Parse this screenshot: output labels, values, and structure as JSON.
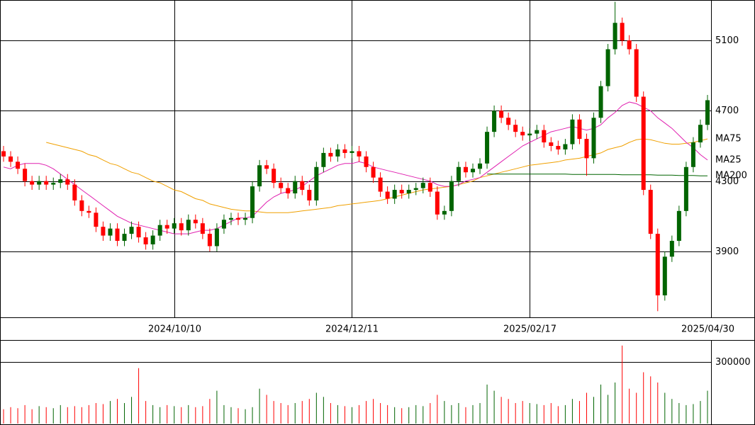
{
  "chart_data": {
    "type": "candlestick",
    "categories": [
      null,
      null,
      null,
      null,
      null,
      null,
      null,
      null,
      null,
      null,
      null,
      null,
      null,
      null,
      null,
      null,
      null,
      null,
      null,
      null,
      null,
      null,
      null,
      null,
      "2024/10/10",
      null,
      null,
      null,
      null,
      null,
      null,
      null,
      null,
      null,
      null,
      null,
      null,
      null,
      null,
      null,
      null,
      null,
      null,
      null,
      null,
      null,
      null,
      null,
      null,
      "2024/12/11",
      null,
      null,
      null,
      null,
      null,
      null,
      null,
      null,
      null,
      null,
      null,
      null,
      null,
      null,
      null,
      null,
      null,
      null,
      null,
      null,
      null,
      null,
      null,
      null,
      "2025/02/17",
      null,
      null,
      null,
      null,
      null,
      null,
      null,
      null,
      null,
      null,
      null,
      null,
      null,
      null,
      null,
      null,
      null,
      null,
      null,
      null,
      null,
      null,
      null,
      null,
      "2025/04/30"
    ],
    "open": [
      4470,
      4440,
      4410,
      4370,
      4300,
      4280,
      4300,
      4280,
      4290,
      4310,
      4280,
      4190,
      4130,
      4120,
      4040,
      3990,
      4030,
      3960,
      4000,
      4040,
      3980,
      3940,
      3990,
      4050,
      4030,
      4060,
      4020,
      4080,
      4060,
      4000,
      3930,
      4030,
      4080,
      4090,
      4080,
      4090,
      4270,
      4390,
      4370,
      4290,
      4260,
      4230,
      4300,
      4250,
      4190,
      4380,
      4460,
      4440,
      4480,
      4460,
      4470,
      4440,
      4380,
      4320,
      4240,
      4200,
      4250,
      4230,
      4250,
      4260,
      4290,
      4240,
      4110,
      4130,
      4300,
      4380,
      4350,
      4370,
      4400,
      4580,
      4700,
      4660,
      4620,
      4580,
      4560,
      4570,
      4590,
      4520,
      4500,
      4480,
      4510,
      4650,
      4540,
      4430,
      4660,
      4840,
      5050,
      5200,
      5100,
      5050,
      4780,
      4250,
      4000,
      3650,
      3870,
      3960,
      4130,
      4380,
      4520,
      4620
    ],
    "high": [
      4500,
      4470,
      4440,
      4400,
      4330,
      4330,
      4330,
      4320,
      4340,
      4340,
      4310,
      4220,
      4160,
      4150,
      4070,
      4060,
      4060,
      4030,
      4070,
      4070,
      4010,
      4020,
      4080,
      4080,
      4090,
      4090,
      4110,
      4110,
      4090,
      4030,
      4060,
      4110,
      4120,
      4120,
      4120,
      4300,
      4420,
      4420,
      4400,
      4320,
      4290,
      4330,
      4330,
      4280,
      4410,
      4490,
      4490,
      4510,
      4510,
      4500,
      4500,
      4470,
      4410,
      4350,
      4270,
      4280,
      4280,
      4280,
      4290,
      4320,
      4320,
      4270,
      4160,
      4330,
      4410,
      4410,
      4400,
      4430,
      4610,
      4730,
      4730,
      4690,
      4650,
      4610,
      4600,
      4620,
      4620,
      4550,
      4530,
      4540,
      4680,
      4680,
      4570,
      4690,
      4870,
      5080,
      5320,
      5230,
      5130,
      5080,
      4810,
      4280,
      4030,
      3900,
      3990,
      4160,
      4410,
      4550,
      4650,
      4790
    ],
    "low": [
      4410,
      4380,
      4340,
      4270,
      4250,
      4250,
      4250,
      4250,
      4260,
      4250,
      4160,
      4100,
      4090,
      4010,
      3960,
      3960,
      3930,
      3930,
      3970,
      3950,
      3910,
      3910,
      3960,
      4000,
      4000,
      3990,
      3990,
      4030,
      3970,
      3900,
      3900,
      4000,
      4050,
      4050,
      4050,
      4060,
      4240,
      4340,
      4260,
      4230,
      4200,
      4200,
      4220,
      4160,
      4160,
      4350,
      4410,
      4410,
      4430,
      4430,
      4410,
      4350,
      4290,
      4210,
      4170,
      4170,
      4200,
      4200,
      4220,
      4230,
      4210,
      4080,
      4080,
      4100,
      4270,
      4320,
      4320,
      4340,
      4370,
      4550,
      4630,
      4590,
      4550,
      4530,
      4530,
      4540,
      4490,
      4470,
      4450,
      4450,
      4480,
      4510,
      4330,
      4400,
      4630,
      4810,
      5020,
      5070,
      5020,
      4750,
      4220,
      3970,
      3560,
      3620,
      3840,
      3930,
      4100,
      4350,
      4490,
      4590
    ],
    "close": [
      4440,
      4410,
      4370,
      4300,
      4280,
      4300,
      4280,
      4290,
      4310,
      4280,
      4190,
      4130,
      4120,
      4040,
      3990,
      4030,
      3960,
      4000,
      4040,
      3980,
      3940,
      3990,
      4050,
      4030,
      4060,
      4020,
      4080,
      4060,
      4000,
      3930,
      4030,
      4080,
      4090,
      4080,
      4090,
      4270,
      4390,
      4370,
      4290,
      4260,
      4230,
      4300,
      4250,
      4190,
      4380,
      4460,
      4440,
      4480,
      4460,
      4470,
      4440,
      4380,
      4320,
      4240,
      4200,
      4250,
      4230,
      4250,
      4260,
      4290,
      4240,
      4110,
      4130,
      4300,
      4380,
      4350,
      4370,
      4400,
      4580,
      4700,
      4660,
      4620,
      4580,
      4560,
      4570,
      4590,
      4520,
      4500,
      4480,
      4510,
      4650,
      4540,
      4430,
      4660,
      4840,
      5050,
      5200,
      5100,
      5050,
      4780,
      4250,
      4000,
      3650,
      3870,
      3960,
      4130,
      4380,
      4520,
      4620,
      4760
    ],
    "up_color": "#006400",
    "down_color": "#ff0000",
    "ylim": [
      3525,
      5330
    ],
    "yticks": [
      3900,
      4300,
      4700,
      5100
    ],
    "grid": true,
    "series": [
      {
        "name": "MA75",
        "color": "#f0a000",
        "values": [
          null,
          null,
          null,
          null,
          null,
          null,
          4520,
          4510,
          4500,
          4490,
          4480,
          4470,
          4450,
          4440,
          4420,
          4400,
          4390,
          4370,
          4350,
          4340,
          4320,
          4300,
          4290,
          4270,
          4250,
          4240,
          4220,
          4200,
          4190,
          4170,
          4160,
          4150,
          4140,
          4135,
          4130,
          4130,
          4125,
          4120,
          4120,
          4120,
          4120,
          4125,
          4130,
          4135,
          4140,
          4145,
          4150,
          4160,
          4165,
          4170,
          4175,
          4180,
          4185,
          4190,
          4200,
          4210,
          4220,
          4230,
          4240,
          4250,
          4255,
          4260,
          4265,
          4270,
          4280,
          4290,
          4300,
          4320,
          4330,
          4340,
          4350,
          4360,
          4370,
          4380,
          4390,
          4395,
          4400,
          4405,
          4410,
          4420,
          4425,
          4430,
          4440,
          4450,
          4460,
          4480,
          4490,
          4500,
          4520,
          4535,
          4540,
          4535,
          4525,
          4515,
          4510,
          4510,
          4515,
          4520,
          4530,
          4540
        ]
      },
      {
        "name": "MA25",
        "color": "#e020b0",
        "values": [
          4380,
          4370,
          4390,
          4400,
          4400,
          4400,
          4390,
          4370,
          4340,
          4310,
          4280,
          4250,
          4220,
          4190,
          4160,
          4130,
          4100,
          4080,
          4060,
          4050,
          4040,
          4030,
          4020,
          4010,
          4000,
          4000,
          4000,
          4010,
          4020,
          4020,
          4030,
          4050,
          4070,
          4090,
          4090,
          4100,
          4140,
          4180,
          4210,
          4230,
          4240,
          4250,
          4270,
          4300,
          4330,
          4350,
          4370,
          4390,
          4400,
          4400,
          4410,
          4400,
          4380,
          4370,
          4360,
          4350,
          4340,
          4330,
          4320,
          4310,
          4300,
          4280,
          4270,
          4270,
          4280,
          4300,
          4310,
          4320,
          4350,
          4380,
          4410,
          4440,
          4470,
          4500,
          4520,
          4540,
          4560,
          4580,
          4590,
          4600,
          4610,
          4600,
          4590,
          4600,
          4620,
          4660,
          4690,
          4730,
          4750,
          4740,
          4720,
          4700,
          4660,
          4630,
          4600,
          4560,
          4520,
          4490,
          4450,
          4420
        ]
      },
      {
        "name": "MA200",
        "color": "#006400",
        "values": [
          null,
          null,
          null,
          null,
          null,
          null,
          null,
          null,
          null,
          null,
          null,
          null,
          null,
          null,
          null,
          null,
          null,
          null,
          null,
          null,
          null,
          null,
          null,
          null,
          null,
          null,
          null,
          null,
          null,
          null,
          null,
          null,
          null,
          null,
          null,
          null,
          null,
          null,
          null,
          null,
          null,
          null,
          null,
          null,
          null,
          null,
          null,
          null,
          null,
          null,
          null,
          null,
          null,
          null,
          null,
          null,
          null,
          null,
          null,
          null,
          null,
          null,
          null,
          null,
          null,
          null,
          null,
          null,
          4340,
          4340,
          4340,
          4340,
          4340,
          4340,
          4340,
          4340,
          4340,
          4340,
          4340,
          4340,
          4338,
          4338,
          4338,
          4338,
          4338,
          4338,
          4338,
          4336,
          4336,
          4336,
          4336,
          4336,
          4334,
          4334,
          4334,
          4332,
          4332,
          4332,
          4330,
          4330
        ]
      }
    ],
    "volume": {
      "values": [
        70000,
        80000,
        75000,
        90000,
        70000,
        85000,
        80000,
        75000,
        90000,
        80000,
        85000,
        80000,
        90000,
        100000,
        95000,
        110000,
        120000,
        100000,
        130000,
        270000,
        110000,
        90000,
        80000,
        90000,
        85000,
        80000,
        90000,
        80000,
        85000,
        120000,
        160000,
        90000,
        80000,
        75000,
        70000,
        80000,
        170000,
        140000,
        110000,
        100000,
        90000,
        100000,
        110000,
        120000,
        150000,
        130000,
        100000,
        90000,
        85000,
        80000,
        90000,
        110000,
        120000,
        100000,
        90000,
        80000,
        75000,
        80000,
        90000,
        85000,
        100000,
        140000,
        110000,
        90000,
        100000,
        80000,
        90000,
        100000,
        190000,
        160000,
        130000,
        120000,
        100000,
        110000,
        100000,
        95000,
        90000,
        100000,
        85000,
        90000,
        120000,
        110000,
        150000,
        130000,
        190000,
        140000,
        200000,
        380000,
        170000,
        150000,
        250000,
        230000,
        200000,
        150000,
        120000,
        100000,
        90000,
        95000,
        110000,
        160000
      ],
      "ylim": [
        0,
        407000
      ],
      "yticks": [
        300000
      ]
    }
  }
}
